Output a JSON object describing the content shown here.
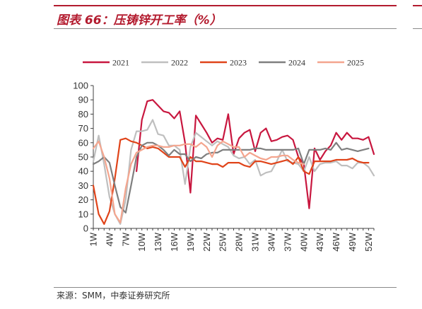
{
  "title": "图表 66：压铸锌开工率（%）",
  "source": "来源：SMM，中泰证券研究所",
  "chart_data": {
    "type": "line",
    "title": "",
    "xlabel": "",
    "ylabel": "",
    "ylim": [
      0,
      100
    ],
    "yticks": [
      0,
      10,
      20,
      30,
      40,
      50,
      60,
      70,
      80,
      90,
      100
    ],
    "xlim": [
      1,
      53
    ],
    "x_tick_labels": [
      "1W",
      "4W",
      "7W",
      "10W",
      "13W",
      "16W",
      "19W",
      "22W",
      "25W",
      "28W",
      "31W",
      "34W",
      "37W",
      "40W",
      "43W",
      "46W",
      "49W",
      "52W"
    ],
    "x_tick_weeks": [
      1,
      4,
      7,
      10,
      13,
      16,
      19,
      22,
      25,
      28,
      31,
      34,
      37,
      40,
      43,
      46,
      49,
      52
    ],
    "legend_position": "top",
    "grid": false,
    "series": [
      {
        "name": "2021",
        "color": "#c8173f",
        "x": [
          9,
          10,
          11,
          12,
          13,
          14,
          15,
          16,
          17,
          18,
          19,
          20,
          21,
          22,
          23,
          24,
          25,
          26,
          27,
          28,
          29,
          30,
          31,
          32,
          33,
          34,
          35,
          36,
          37,
          38,
          39,
          40,
          41,
          42,
          43,
          44,
          45,
          46,
          47,
          48,
          49,
          50,
          51,
          52,
          53
        ],
        "values": [
          40,
          76,
          89,
          90,
          86,
          82,
          81,
          77,
          82,
          60,
          25,
          79,
          73,
          67,
          60,
          63,
          62,
          80,
          52,
          63,
          67,
          69,
          54,
          67,
          70,
          61,
          62,
          64,
          65,
          62,
          50,
          45,
          14,
          56,
          48,
          54,
          58,
          67,
          62,
          67,
          63,
          63,
          62,
          64,
          52
        ]
      },
      {
        "name": "2022",
        "color": "#bfbfbf",
        "x": [
          1,
          2,
          3,
          4,
          5,
          6,
          7,
          8,
          9,
          10,
          11,
          12,
          13,
          14,
          15,
          16,
          17,
          18,
          19,
          20,
          21,
          22,
          23,
          24,
          25,
          26,
          27,
          28,
          29,
          30,
          31,
          32,
          33,
          34,
          35,
          36,
          37,
          38,
          39,
          40,
          41,
          42,
          43,
          44,
          45,
          46,
          47,
          48,
          49,
          50,
          51,
          52,
          53
        ],
        "values": [
          47,
          65,
          45,
          22,
          10,
          3,
          20,
          55,
          68,
          68,
          69,
          76,
          66,
          65,
          58,
          58,
          55,
          31,
          57,
          67,
          64,
          61,
          58,
          61,
          59,
          57,
          51,
          49,
          50,
          45,
          48,
          37,
          39,
          40,
          47,
          55,
          47,
          46,
          45,
          40,
          50,
          40,
          45,
          46,
          46,
          47,
          44,
          44,
          42,
          46,
          46,
          43,
          37
        ]
      },
      {
        "name": "2023",
        "color": "#e0441a",
        "x": [
          1,
          2,
          3,
          4,
          5,
          6,
          7,
          8,
          9,
          10,
          11,
          12,
          13,
          14,
          15,
          16,
          17,
          18,
          19,
          20,
          21,
          22,
          23,
          24,
          25,
          26,
          27,
          28,
          29,
          30,
          31,
          32,
          33,
          34,
          35,
          36,
          37,
          38,
          39,
          40,
          41,
          42,
          43,
          44,
          45,
          46,
          47,
          48,
          49,
          50,
          51,
          52
        ],
        "values": [
          30,
          10,
          3,
          12,
          35,
          62,
          63,
          61,
          60,
          58,
          56,
          57,
          56,
          53,
          50,
          50,
          50,
          43,
          50,
          47,
          47,
          46,
          45,
          45,
          43,
          46,
          46,
          46,
          44,
          43,
          47,
          47,
          46,
          45,
          46,
          47,
          48,
          45,
          50,
          40,
          38,
          47,
          47,
          47,
          47,
          48,
          48,
          48,
          49,
          47,
          46,
          46
        ]
      },
      {
        "name": "2024",
        "color": "#7f7f7f",
        "x": [
          1,
          2,
          3,
          4,
          5,
          6,
          7,
          8,
          9,
          10,
          11,
          12,
          13,
          14,
          15,
          16,
          17,
          18,
          19,
          20,
          21,
          22,
          23,
          24,
          25,
          26,
          27,
          28,
          29,
          30,
          31,
          32,
          33,
          34,
          35,
          36,
          37,
          38,
          39,
          40,
          41,
          42,
          43,
          44,
          45,
          46,
          47,
          48,
          49,
          50,
          51,
          52
        ],
        "values": [
          45,
          47,
          50,
          46,
          30,
          15,
          11,
          30,
          50,
          58,
          60,
          60,
          58,
          55,
          51,
          55,
          52,
          52,
          47,
          50,
          49,
          52,
          53,
          53,
          55,
          55,
          55,
          55,
          55,
          55,
          56,
          56,
          55,
          55,
          55,
          55,
          55,
          55,
          56,
          45,
          55,
          55,
          55,
          56,
          55,
          60,
          55,
          56,
          55,
          54,
          55,
          56
        ]
      },
      {
        "name": "2025",
        "color": "#f4a58e",
        "x": [
          1,
          2,
          3,
          4,
          5,
          6,
          7,
          8,
          9,
          10,
          11,
          12,
          13,
          14,
          15,
          16,
          17,
          18,
          19,
          20,
          21,
          22,
          23,
          24,
          25,
          26,
          27,
          28,
          29,
          30,
          31,
          32,
          33,
          34,
          35,
          36,
          37,
          38,
          39,
          40
        ],
        "values": [
          56,
          61,
          50,
          35,
          10,
          4,
          28,
          45,
          53,
          55,
          57,
          58,
          58,
          57,
          57,
          58,
          58,
          59,
          59,
          57,
          60,
          57,
          50,
          58,
          61,
          59,
          57,
          57,
          50,
          53,
          51,
          49,
          48,
          50,
          50,
          51,
          51,
          48,
          46,
          45
        ]
      }
    ]
  }
}
